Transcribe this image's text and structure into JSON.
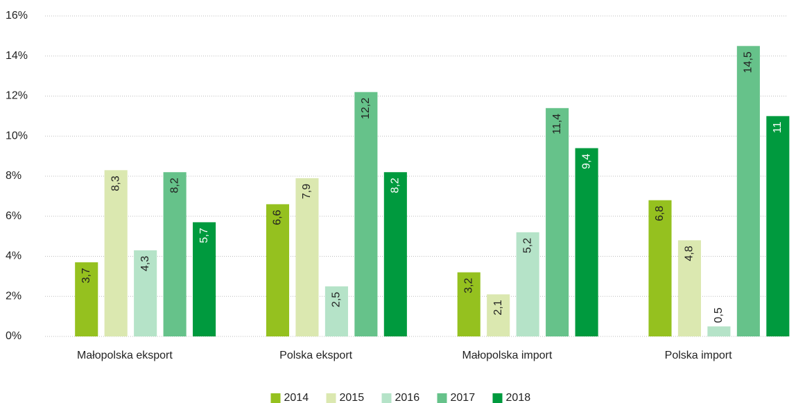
{
  "chart_data": {
    "type": "bar",
    "categories": [
      "Małopolska eksport",
      "Polska eksport",
      "Małopolska import",
      "Polska import"
    ],
    "series": [
      {
        "name": "2014",
        "color": "#95c11f",
        "values": [
          3.7,
          6.6,
          3.2,
          6.8
        ],
        "value_labels": [
          "3,7",
          "6,6",
          "3,2",
          "6,8"
        ]
      },
      {
        "name": "2015",
        "color": "#dbe8b0",
        "values": [
          8.3,
          7.9,
          2.1,
          4.8
        ],
        "value_labels": [
          "8,3",
          "7,9",
          "2,1",
          "4,8"
        ]
      },
      {
        "name": "2016",
        "color": "#b5e3c8",
        "values": [
          4.3,
          2.5,
          5.2,
          0.5
        ],
        "value_labels": [
          "4,3",
          "2,5",
          "5,2",
          "0,5"
        ]
      },
      {
        "name": "2017",
        "color": "#66c28a",
        "values": [
          8.2,
          12.2,
          11.4,
          14.5
        ],
        "value_labels": [
          "8,2",
          "12,2",
          "11,4",
          "14,5"
        ]
      },
      {
        "name": "2018",
        "color": "#009a3e",
        "values": [
          5.7,
          8.2,
          9.4,
          11
        ],
        "value_labels": [
          "5,7",
          "8,2",
          "9,4",
          "11"
        ]
      }
    ],
    "ylim": [
      0,
      16
    ],
    "yticks": [
      {
        "value": 0,
        "label": "0%"
      },
      {
        "value": 2,
        "label": "2%"
      },
      {
        "value": 4,
        "label": "4%"
      },
      {
        "value": 6,
        "label": "6%"
      },
      {
        "value": 8,
        "label": "8%"
      },
      {
        "value": 10,
        "label": "10%"
      },
      {
        "value": 12,
        "label": "12%"
      },
      {
        "value": 14,
        "label": "14%"
      },
      {
        "value": 16,
        "label": "16%"
      }
    ],
    "grid": true,
    "legend": "bottom"
  }
}
